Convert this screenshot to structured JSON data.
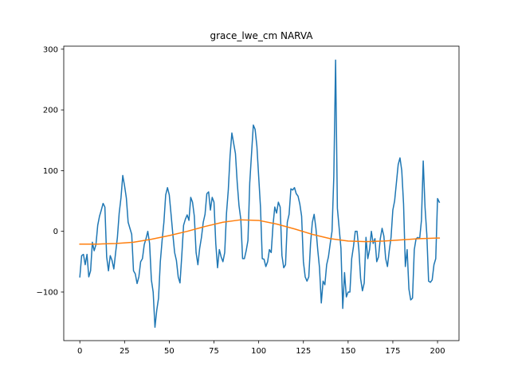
{
  "chart_data": {
    "type": "line",
    "title": "grace_lwe_cm NARVA",
    "xlabel": "",
    "ylabel": "",
    "xlim": [
      -9,
      212
    ],
    "ylim": [
      -180,
      305
    ],
    "grid": false,
    "x_ticks": [
      0,
      25,
      50,
      75,
      100,
      125,
      150,
      175,
      200
    ],
    "y_ticks": [
      -100,
      0,
      100,
      200,
      300
    ],
    "y_tick_labels": [
      "−100",
      "0",
      "100",
      "200",
      "300"
    ],
    "series": [
      {
        "color": "#1f77b4",
        "points": [
          [
            0,
            -75
          ],
          [
            1,
            -40
          ],
          [
            2,
            -38
          ],
          [
            3,
            -55
          ],
          [
            4,
            -38
          ],
          [
            5,
            -75
          ],
          [
            6,
            -65
          ],
          [
            7,
            -18
          ],
          [
            8,
            -32
          ],
          [
            9,
            -22
          ],
          [
            10,
            10
          ],
          [
            11,
            25
          ],
          [
            12,
            35
          ],
          [
            13,
            46
          ],
          [
            14,
            40
          ],
          [
            15,
            -42
          ],
          [
            16,
            -65
          ],
          [
            17,
            -40
          ],
          [
            18,
            -48
          ],
          [
            19,
            -62
          ],
          [
            20,
            -35
          ],
          [
            21,
            -10
          ],
          [
            22,
            30
          ],
          [
            23,
            55
          ],
          [
            24,
            92
          ],
          [
            25,
            75
          ],
          [
            26,
            55
          ],
          [
            27,
            15
          ],
          [
            28,
            5
          ],
          [
            29,
            -5
          ],
          [
            30,
            -65
          ],
          [
            31,
            -70
          ],
          [
            32,
            -86
          ],
          [
            33,
            -75
          ],
          [
            34,
            -50
          ],
          [
            35,
            -45
          ],
          [
            36,
            -22
          ],
          [
            37,
            -12
          ],
          [
            38,
            0
          ],
          [
            39,
            -20
          ],
          [
            40,
            -80
          ],
          [
            41,
            -100
          ],
          [
            42,
            -158
          ],
          [
            43,
            -130
          ],
          [
            44,
            -110
          ],
          [
            45,
            -50
          ],
          [
            46,
            -15
          ],
          [
            47,
            15
          ],
          [
            48,
            60
          ],
          [
            49,
            72
          ],
          [
            50,
            60
          ],
          [
            51,
            28
          ],
          [
            52,
            -5
          ],
          [
            53,
            -35
          ],
          [
            54,
            -48
          ],
          [
            55,
            -75
          ],
          [
            56,
            -85
          ],
          [
            57,
            -40
          ],
          [
            58,
            10
          ],
          [
            59,
            20
          ],
          [
            60,
            27
          ],
          [
            61,
            18
          ],
          [
            62,
            56
          ],
          [
            63,
            48
          ],
          [
            64,
            25
          ],
          [
            65,
            -35
          ],
          [
            66,
            -55
          ],
          [
            67,
            -28
          ],
          [
            68,
            -10
          ],
          [
            69,
            15
          ],
          [
            70,
            28
          ],
          [
            71,
            62
          ],
          [
            72,
            65
          ],
          [
            73,
            35
          ],
          [
            74,
            56
          ],
          [
            75,
            48
          ],
          [
            76,
            -20
          ],
          [
            77,
            -60
          ],
          [
            78,
            -30
          ],
          [
            79,
            -42
          ],
          [
            80,
            -50
          ],
          [
            81,
            -35
          ],
          [
            82,
            30
          ],
          [
            83,
            68
          ],
          [
            84,
            125
          ],
          [
            85,
            162
          ],
          [
            86,
            145
          ],
          [
            87,
            128
          ],
          [
            88,
            80
          ],
          [
            89,
            42
          ],
          [
            90,
            20
          ],
          [
            91,
            -45
          ],
          [
            92,
            -45
          ],
          [
            93,
            -32
          ],
          [
            94,
            -15
          ],
          [
            95,
            80
          ],
          [
            96,
            128
          ],
          [
            97,
            175
          ],
          [
            98,
            168
          ],
          [
            99,
            140
          ],
          [
            100,
            90
          ],
          [
            101,
            40
          ],
          [
            102,
            -45
          ],
          [
            103,
            -46
          ],
          [
            104,
            -58
          ],
          [
            105,
            -50
          ],
          [
            106,
            -30
          ],
          [
            107,
            -35
          ],
          [
            108,
            10
          ],
          [
            109,
            40
          ],
          [
            110,
            30
          ],
          [
            111,
            48
          ],
          [
            112,
            40
          ],
          [
            113,
            -40
          ],
          [
            114,
            -60
          ],
          [
            115,
            -55
          ],
          [
            116,
            15
          ],
          [
            117,
            28
          ],
          [
            118,
            70
          ],
          [
            119,
            68
          ],
          [
            120,
            72
          ],
          [
            121,
            62
          ],
          [
            122,
            58
          ],
          [
            123,
            45
          ],
          [
            124,
            25
          ],
          [
            125,
            -50
          ],
          [
            126,
            -75
          ],
          [
            127,
            -82
          ],
          [
            128,
            -75
          ],
          [
            129,
            -20
          ],
          [
            130,
            15
          ],
          [
            131,
            28
          ],
          [
            132,
            5
          ],
          [
            133,
            -30
          ],
          [
            134,
            -60
          ],
          [
            135,
            -118
          ],
          [
            136,
            -82
          ],
          [
            137,
            -88
          ],
          [
            138,
            -55
          ],
          [
            139,
            -42
          ],
          [
            140,
            -20
          ],
          [
            141,
            0
          ],
          [
            142,
            90
          ],
          [
            143,
            282
          ],
          [
            144,
            38
          ],
          [
            145,
            5
          ],
          [
            146,
            -28
          ],
          [
            147,
            -127
          ],
          [
            148,
            -68
          ],
          [
            149,
            -108
          ],
          [
            150,
            -100
          ],
          [
            151,
            -100
          ],
          [
            152,
            -45
          ],
          [
            153,
            -25
          ],
          [
            154,
            0
          ],
          [
            155,
            0
          ],
          [
            156,
            -30
          ],
          [
            157,
            -78
          ],
          [
            158,
            -98
          ],
          [
            159,
            -85
          ],
          [
            160,
            -10
          ],
          [
            161,
            -45
          ],
          [
            162,
            -30
          ],
          [
            163,
            0
          ],
          [
            164,
            -20
          ],
          [
            165,
            -12
          ],
          [
            166,
            -50
          ],
          [
            167,
            -42
          ],
          [
            168,
            -12
          ],
          [
            169,
            5
          ],
          [
            170,
            -8
          ],
          [
            171,
            -45
          ],
          [
            172,
            -58
          ],
          [
            173,
            -32
          ],
          [
            174,
            -10
          ],
          [
            175,
            35
          ],
          [
            176,
            50
          ],
          [
            177,
            80
          ],
          [
            178,
            110
          ],
          [
            179,
            121
          ],
          [
            180,
            100
          ],
          [
            181,
            45
          ],
          [
            182,
            -58
          ],
          [
            183,
            -30
          ],
          [
            184,
            -95
          ],
          [
            185,
            -113
          ],
          [
            186,
            -110
          ],
          [
            187,
            -30
          ],
          [
            188,
            -12
          ],
          [
            189,
            -10
          ],
          [
            190,
            -12
          ],
          [
            191,
            18
          ],
          [
            192,
            116
          ],
          [
            193,
            40
          ],
          [
            194,
            -5
          ],
          [
            195,
            -82
          ],
          [
            196,
            -84
          ],
          [
            197,
            -80
          ],
          [
            198,
            -55
          ],
          [
            199,
            -45
          ],
          [
            200,
            54
          ],
          [
            201,
            48
          ]
        ]
      },
      {
        "color": "#ff7f0e",
        "points": [
          [
            0,
            -21
          ],
          [
            10,
            -21
          ],
          [
            20,
            -20
          ],
          [
            30,
            -18
          ],
          [
            40,
            -13
          ],
          [
            50,
            -7
          ],
          [
            60,
            0
          ],
          [
            70,
            8
          ],
          [
            80,
            15
          ],
          [
            90,
            19
          ],
          [
            100,
            18
          ],
          [
            110,
            12
          ],
          [
            120,
            4
          ],
          [
            130,
            -5
          ],
          [
            140,
            -12
          ],
          [
            150,
            -16
          ],
          [
            160,
            -17
          ],
          [
            170,
            -16
          ],
          [
            180,
            -14
          ],
          [
            190,
            -12
          ],
          [
            200,
            -11
          ],
          [
            201,
            -11
          ]
        ]
      }
    ]
  }
}
